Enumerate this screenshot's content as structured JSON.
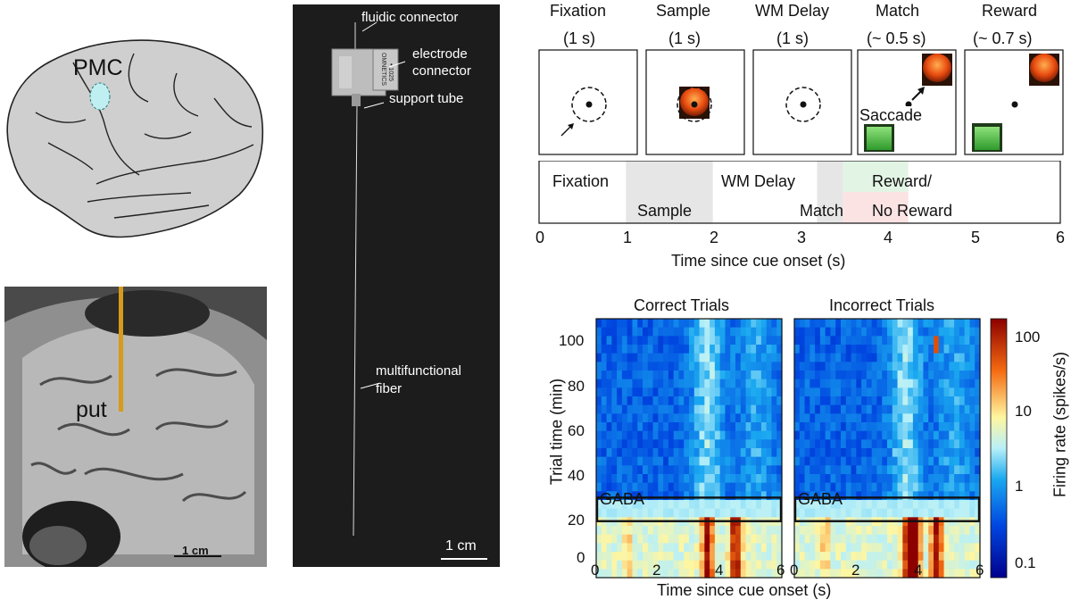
{
  "brain": {
    "region_label": "PMC"
  },
  "mri": {
    "structure_label": "put",
    "scale_label": "1 cm"
  },
  "device": {
    "labels": {
      "fluidic": "fluidic connector",
      "electrode": [
        "electrode",
        "connector"
      ],
      "support": "support tube",
      "fiber": [
        "multifunctional",
        "fiber"
      ]
    },
    "chip_text": [
      "OMNETICS",
      "• 1025"
    ],
    "scale_label": "1 cm"
  },
  "task": {
    "stages": [
      {
        "name": "Fixation",
        "duration": "(1 s)"
      },
      {
        "name": "Sample",
        "duration": "(1 s)"
      },
      {
        "name": "WM Delay",
        "duration": "(1 s)"
      },
      {
        "name": "Match",
        "duration": "(~ 0.5 s)"
      },
      {
        "name": "Reward",
        "duration": "(~ 0.7 s)"
      }
    ],
    "saccade_label": "Saccade",
    "timeline": {
      "labels": {
        "fixation": "Fixation",
        "sample": "Sample",
        "delay": "WM Delay",
        "match": "Match",
        "reward": "Reward/",
        "no_reward": "No Reward"
      },
      "ticks": [
        "0",
        "1",
        "2",
        "3",
        "4",
        "5",
        "6"
      ],
      "xlabel": "Time since cue onset (s)",
      "epochs": [
        {
          "name": "Sample",
          "start": 1.0,
          "end": 2.0
        },
        {
          "name": "Match",
          "start": 3.2,
          "end": 3.5
        },
        {
          "name": "Reward",
          "start": 3.5,
          "end": 4.25
        }
      ],
      "colors": {
        "shade": "#e6e6e6",
        "reward": "#e2f4e4",
        "no_reward": "#fbe3e4"
      }
    }
  },
  "chart_data": {
    "type": "heatmap",
    "panels": [
      {
        "title": "Correct Trials",
        "peaks_s": [
          3.6,
          4.5
        ],
        "peak_color": "#cc1100"
      },
      {
        "title": "Incorrect Trials",
        "peaks_s": [
          3.7,
          3.9,
          4.6
        ],
        "peak_color": "#cc1100"
      }
    ],
    "x_ticks": [
      "0",
      "2",
      "4",
      "6"
    ],
    "xlim": [
      0,
      6
    ],
    "y_ticks": [
      "100",
      "80",
      "60",
      "40",
      "20",
      "0"
    ],
    "ylim": [
      0,
      110
    ],
    "xlabel": "Time since cue onset (s)",
    "ylabel": "Trial time (min)",
    "band_label": "GABA",
    "band_range_min": [
      24,
      34
    ],
    "colorbar": {
      "label": "Firing rate (spikes/s)",
      "ticks": [
        "100",
        "10",
        "1",
        "0.1"
      ],
      "scale": "log",
      "range": [
        0.1,
        150
      ]
    }
  }
}
